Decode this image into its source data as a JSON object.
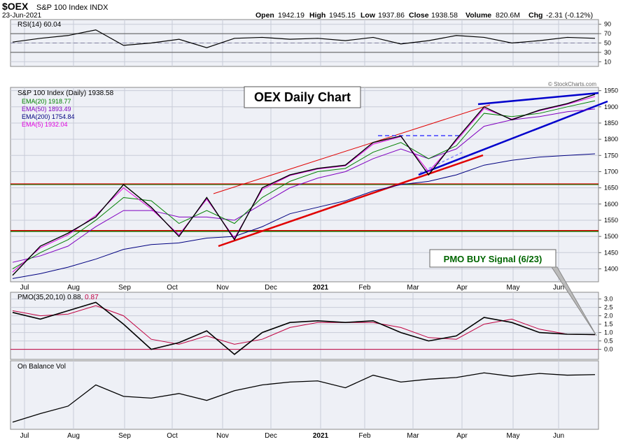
{
  "header": {
    "symbol": "$OEX",
    "name": "S&P 100 Index INDX",
    "date": "23-Jun-2021",
    "open_label": "Open",
    "open": "1942.19",
    "high_label": "High",
    "high": "1945.15",
    "low_label": "Low",
    "low": "1937.86",
    "close_label": "Close",
    "close": "1938.58",
    "volume_label": "Volume",
    "volume": "820.6M",
    "chg_label": "Chg",
    "chg": "-2.31 (-0.12%)",
    "copyright": "© StockCharts.com"
  },
  "colors": {
    "panel_bg": "#eef0f6",
    "price": "#000000",
    "ema20": "#008000",
    "ema50": "#8000c0",
    "ema200": "#000080",
    "ema5": "#e000e0",
    "pmo_signal": "#c00040",
    "red_line": "#e00000",
    "blue_line": "#0000cc",
    "green_line": "#008000",
    "callout_text": "#006600"
  },
  "annotations": {
    "title_box": "OEX Daily Chart",
    "pmo_signal_box": "PMO BUY Signal (6/23)"
  },
  "x_axis_months": [
    "Jul",
    "Aug",
    "Sep",
    "Oct",
    "Nov",
    "Dec",
    "2021",
    "Feb",
    "Mar",
    "Apr",
    "May",
    "Jun"
  ],
  "chart_data": [
    {
      "type": "line",
      "name": "rsi",
      "legend": "RSI(14) 60.04",
      "ylim": [
        0,
        100
      ],
      "yticks": [
        10,
        30,
        50,
        70,
        90
      ],
      "levels": [
        30,
        70
      ],
      "x": [
        "2020-07",
        "2020-08",
        "2020-08",
        "2020-09",
        "2020-09",
        "2020-10",
        "2020-10",
        "2020-11",
        "2020-11",
        "2020-12",
        "2020-12",
        "2021-01",
        "2021-01",
        "2021-02",
        "2021-03",
        "2021-03",
        "2021-04",
        "2021-04",
        "2021-05",
        "2021-05",
        "2021-06",
        "2021-06"
      ],
      "values": [
        52,
        60,
        66,
        78,
        45,
        50,
        58,
        40,
        60,
        62,
        58,
        60,
        55,
        62,
        48,
        55,
        66,
        62,
        50,
        55,
        62,
        60
      ]
    },
    {
      "type": "line",
      "name": "price",
      "legend": "S&P 100 Index (Daily) 1938.58",
      "ylim": [
        1360,
        1960
      ],
      "yticks": [
        1400,
        1450,
        1500,
        1550,
        1600,
        1650,
        1700,
        1750,
        1800,
        1850,
        1900,
        1950
      ],
      "x": [
        "2020-07-01",
        "2020-07-15",
        "2020-08-01",
        "2020-08-15",
        "2020-09-01",
        "2020-09-10",
        "2020-09-25",
        "2020-10-12",
        "2020-10-30",
        "2020-11-10",
        "2020-12-01",
        "2020-12-15",
        "2021-01-05",
        "2021-01-25",
        "2021-02-10",
        "2021-03-04",
        "2021-03-20",
        "2021-04-15",
        "2021-05-10",
        "2021-05-25",
        "2021-06-10",
        "2021-06-23"
      ],
      "series": [
        {
          "name": "price",
          "values": [
            1380,
            1470,
            1510,
            1560,
            1660,
            1590,
            1500,
            1620,
            1490,
            1650,
            1690,
            1710,
            1720,
            1790,
            1810,
            1690,
            1800,
            1900,
            1860,
            1890,
            1910,
            1938.58
          ]
        },
        {
          "name": "EMA(20) 1918.77",
          "values": [
            1400,
            1450,
            1490,
            1550,
            1620,
            1610,
            1540,
            1580,
            1540,
            1620,
            1670,
            1700,
            1710,
            1760,
            1790,
            1740,
            1780,
            1880,
            1870,
            1880,
            1900,
            1918.77
          ]
        },
        {
          "name": "EMA(50) 1893.49",
          "values": [
            1420,
            1440,
            1470,
            1530,
            1580,
            1580,
            1560,
            1560,
            1550,
            1600,
            1650,
            1680,
            1700,
            1740,
            1770,
            1740,
            1770,
            1840,
            1860,
            1870,
            1885,
            1893.49
          ]
        },
        {
          "name": "EMA(200) 1754.84",
          "values": [
            1370,
            1385,
            1405,
            1430,
            1460,
            1475,
            1480,
            1495,
            1500,
            1530,
            1570,
            1590,
            1610,
            1640,
            1660,
            1670,
            1690,
            1720,
            1735,
            1745,
            1750,
            1754.84
          ]
        },
        {
          "name": "EMA(5) 1932.04",
          "values": [
            1390,
            1465,
            1505,
            1565,
            1650,
            1585,
            1505,
            1615,
            1495,
            1645,
            1688,
            1708,
            1718,
            1785,
            1808,
            1700,
            1795,
            1895,
            1862,
            1888,
            1908,
            1932.04
          ]
        }
      ]
    },
    {
      "type": "line",
      "name": "pmo",
      "legend_prefix": "PMO(35,20,10) 0.88,",
      "legend_signal": "0.87",
      "ylim": [
        -0.6,
        3.4
      ],
      "yticks": [
        "0.0",
        "0.5",
        "1.0",
        "1.5",
        "2.0",
        "2.5",
        "3.0"
      ],
      "x": [
        "2020-07",
        "2020-08",
        "2020-08",
        "2020-09",
        "2020-09",
        "2020-10",
        "2020-10",
        "2020-11",
        "2020-11",
        "2020-12",
        "2020-12",
        "2021-01",
        "2021-01",
        "2021-02",
        "2021-03",
        "2021-03",
        "2021-04",
        "2021-04",
        "2021-05",
        "2021-05",
        "2021-06",
        "2021-06"
      ],
      "series": [
        {
          "name": "PMO",
          "values": [
            2.2,
            1.8,
            2.3,
            2.8,
            1.5,
            0.0,
            0.4,
            1.1,
            -0.3,
            1.0,
            1.6,
            1.7,
            1.6,
            1.7,
            1.0,
            0.5,
            0.8,
            1.9,
            1.6,
            1.0,
            0.9,
            0.88
          ]
        },
        {
          "name": "Signal",
          "values": [
            2.3,
            2.0,
            2.1,
            2.6,
            2.0,
            0.6,
            0.3,
            0.8,
            0.3,
            0.6,
            1.3,
            1.6,
            1.6,
            1.6,
            1.3,
            0.7,
            0.6,
            1.5,
            1.8,
            1.2,
            0.9,
            0.87
          ]
        }
      ]
    },
    {
      "type": "line",
      "name": "obv",
      "legend": "On Balance Vol",
      "x": [
        "2020-07",
        "2020-08",
        "2020-08",
        "2020-09",
        "2020-09",
        "2020-10",
        "2020-10",
        "2020-11",
        "2020-11",
        "2020-12",
        "2020-12",
        "2021-01",
        "2021-01",
        "2021-02",
        "2021-03",
        "2021-03",
        "2021-04",
        "2021-04",
        "2021-05",
        "2021-05",
        "2021-06",
        "2021-06"
      ],
      "values": [
        10,
        25,
        38,
        75,
        55,
        52,
        60,
        48,
        65,
        75,
        80,
        82,
        70,
        92,
        80,
        85,
        88,
        96,
        90,
        95,
        92,
        93
      ]
    }
  ]
}
